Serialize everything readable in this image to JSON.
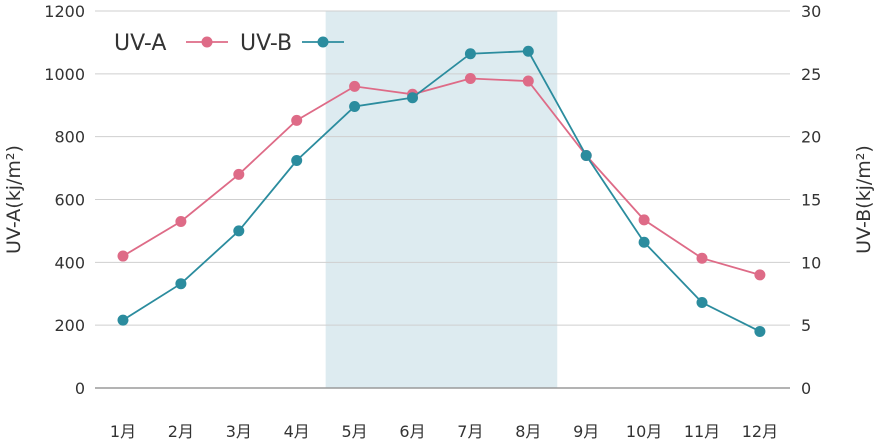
{
  "chart_data": {
    "type": "line",
    "title": "",
    "categories": [
      "1月",
      "2月",
      "3月",
      "4月",
      "5月",
      "6月",
      "7月",
      "8月",
      "9月",
      "10月",
      "11月",
      "12月"
    ],
    "series": [
      {
        "name": "UV-A",
        "axis": "left",
        "color": "#de6b87",
        "values": [
          420,
          530,
          680,
          852,
          960,
          935,
          985,
          977,
          740,
          535,
          413,
          360
        ]
      },
      {
        "name": "UV-B",
        "axis": "right",
        "color": "#2b8c9e",
        "values": [
          5.4,
          8.3,
          12.5,
          18.1,
          22.4,
          23.1,
          26.6,
          26.8,
          18.5,
          11.6,
          6.8,
          4.5
        ]
      }
    ],
    "ylabel_left": "UV-A(kj/m²)",
    "ylabel_right": "UV-B(kj/m²)",
    "ylim_left": [
      0,
      1200
    ],
    "ylim_right": [
      0,
      30
    ],
    "yticks_left": [
      "0",
      "200",
      "400",
      "600",
      "800",
      "1000",
      "1200"
    ],
    "yticks_right": [
      "0",
      "5",
      "10",
      "15",
      "20",
      "25",
      "30"
    ],
    "highlight_band": {
      "from_category": "5月",
      "to_category": "8月",
      "color": "#ddebf0"
    },
    "grid": true,
    "legend_position": "top-left"
  }
}
